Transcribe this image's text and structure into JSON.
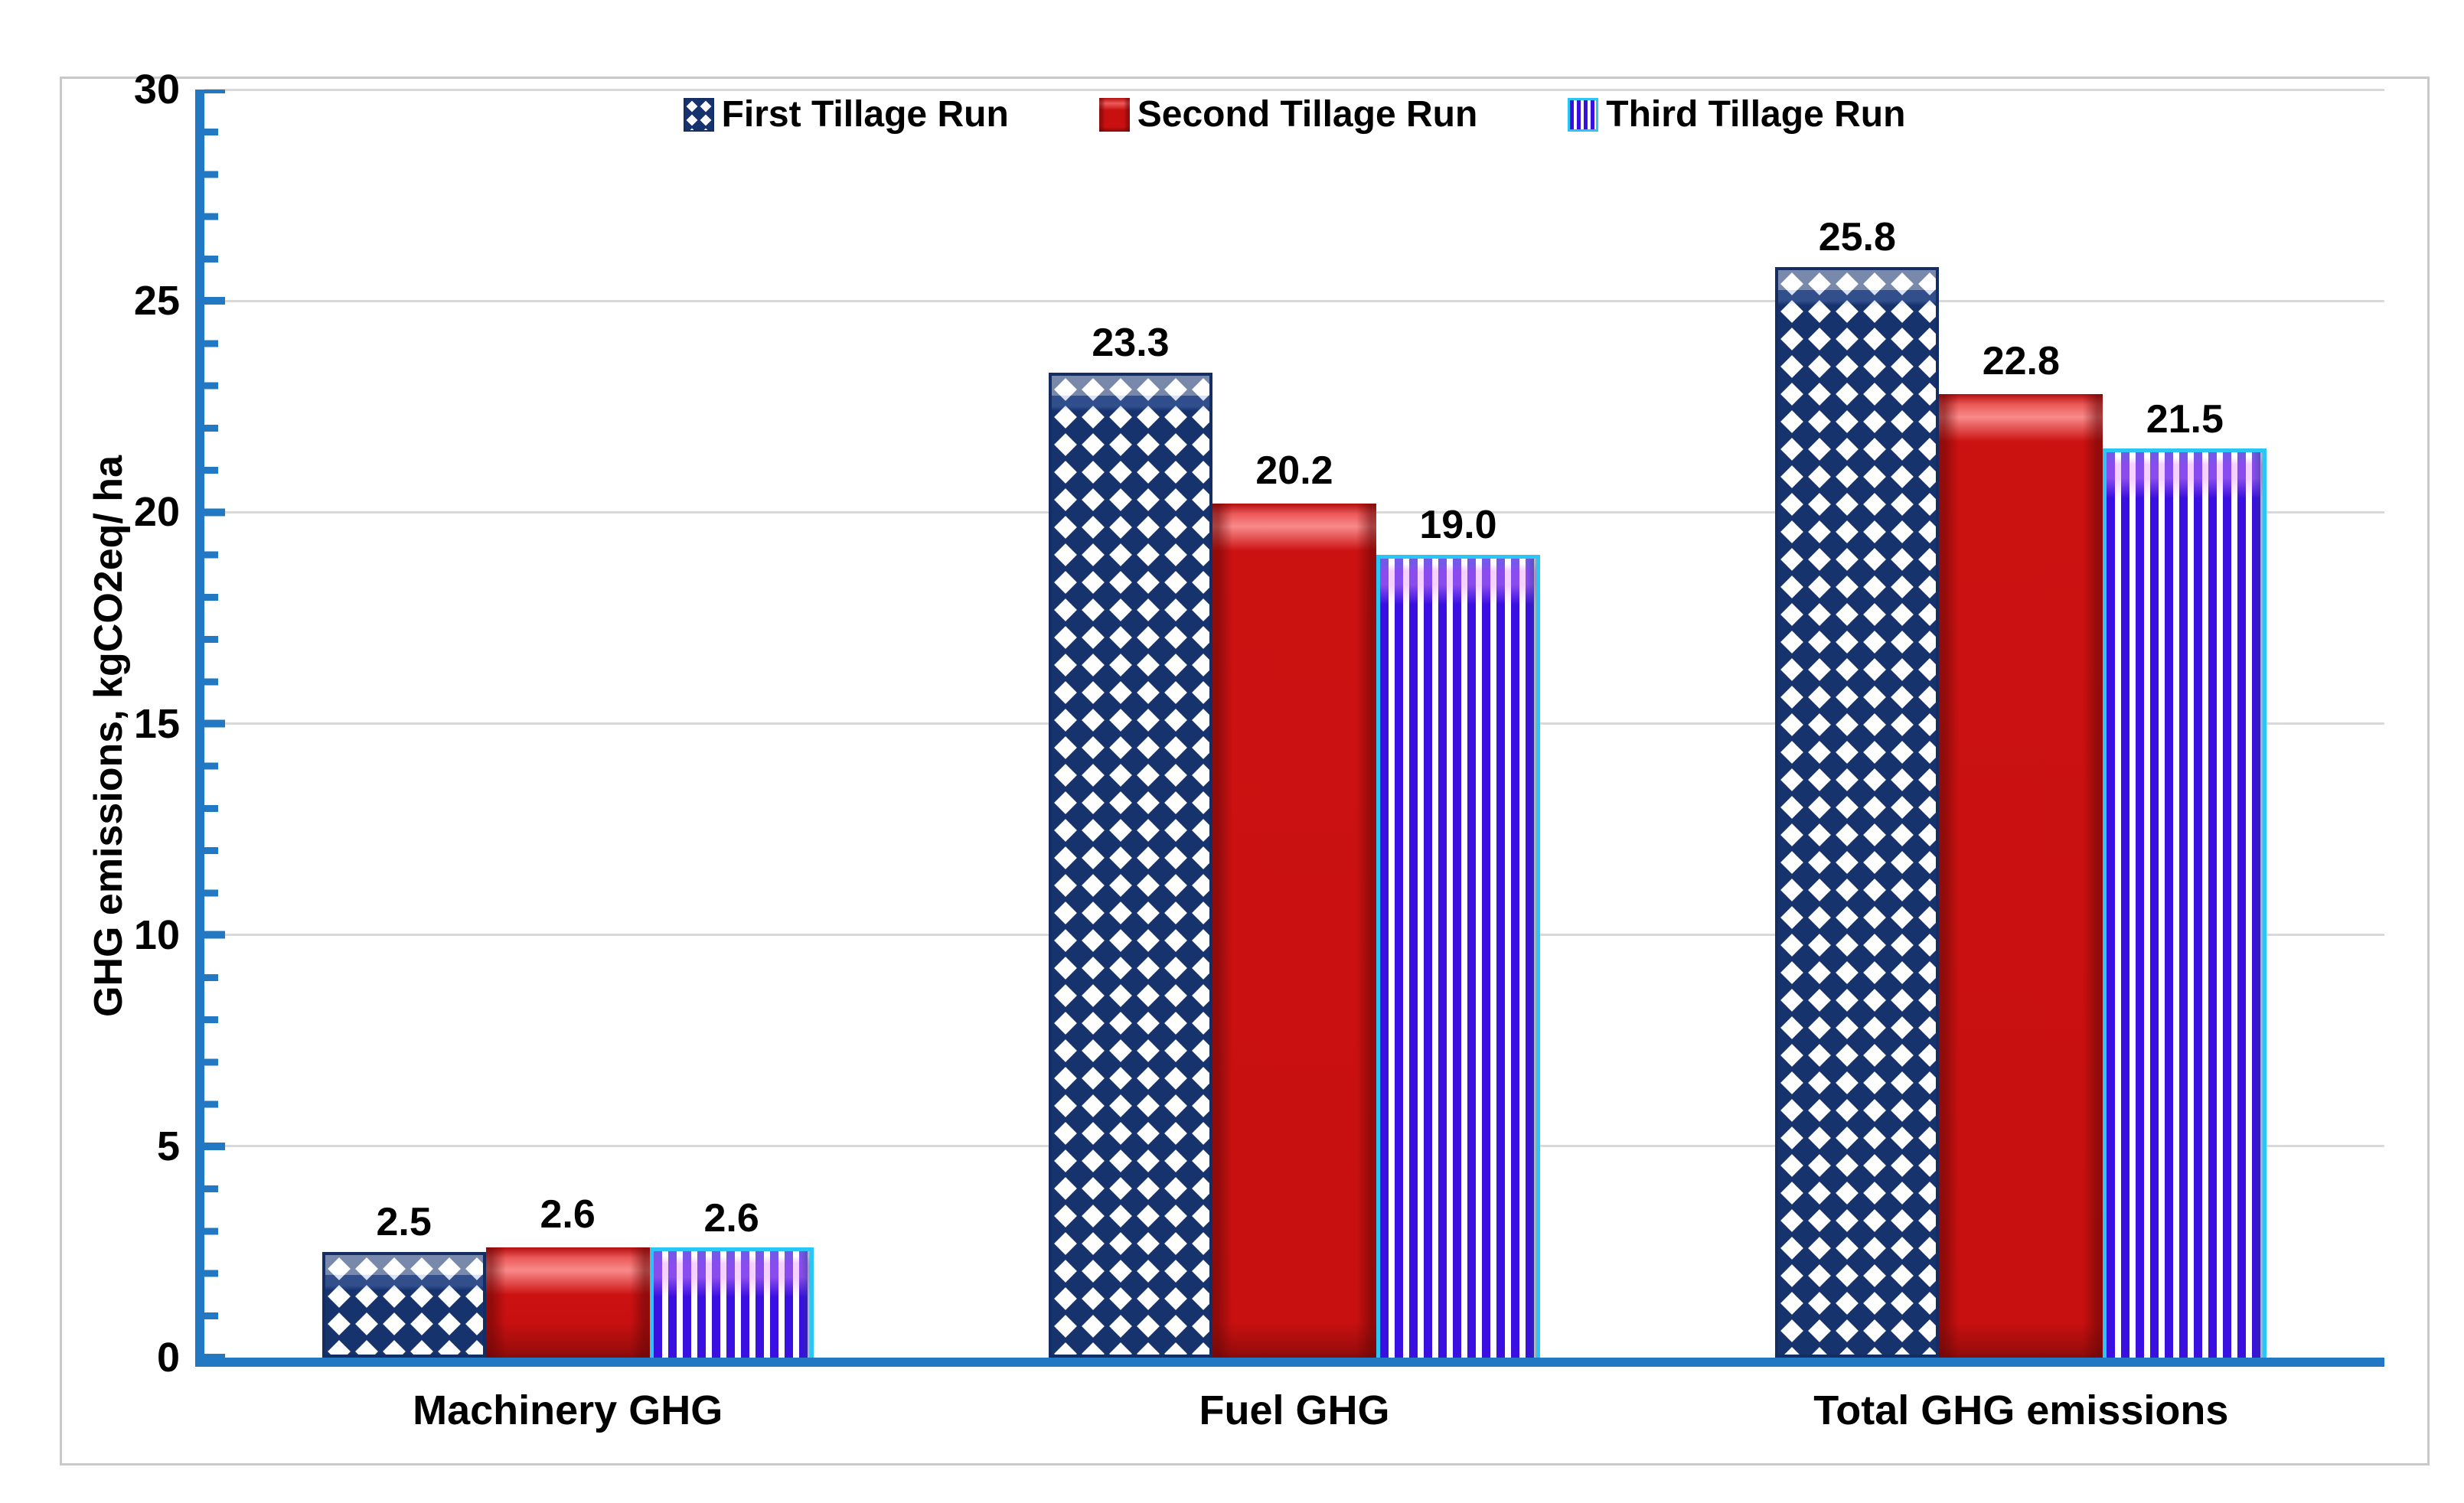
{
  "figure": {
    "background_color": "#FFFFFF",
    "frame_border_color": "#C9C9C9",
    "axis_color": "#2278C3",
    "gridline_color": "#D9D9D9"
  },
  "legend": {
    "position": "top-center",
    "items": [
      {
        "label": "First Tillage Run",
        "swatch": "navy-diamond-pattern",
        "color": "#16336E"
      },
      {
        "label": "Second Tillage Run",
        "swatch": "glossy-red-solid",
        "color": "#C81010"
      },
      {
        "label": "Third Tillage Run",
        "swatch": "violet-vertical-stripes",
        "color": "#3A0FE1",
        "swatch_border": "#2AC6F7"
      }
    ]
  },
  "y_axis": {
    "title": "GHG emissions, kgCO2eq/ ha",
    "ticks": [
      0,
      5,
      10,
      15,
      20,
      25,
      30
    ],
    "minor_tick_step": 1,
    "max": 30
  },
  "chart_data": {
    "type": "bar",
    "title": "",
    "xlabel": "",
    "ylabel": "GHG emissions, kgCO2eq/ ha",
    "ylim": [
      0,
      30
    ],
    "grid": true,
    "legend_position": "top",
    "categories": [
      "Machinery GHG",
      "Fuel GHG",
      "Total GHG emissions"
    ],
    "series": [
      {
        "name": "First Tillage Run",
        "style": "navy-diamond-pattern",
        "color": "#16336E",
        "values": [
          2.5,
          23.3,
          25.8
        ],
        "labels": [
          "2.5",
          "23.3",
          "25.8"
        ]
      },
      {
        "name": "Second Tillage Run",
        "style": "glossy-red-solid",
        "color": "#C81010",
        "values": [
          2.6,
          20.2,
          22.8
        ],
        "labels": [
          "2.6",
          "20.2",
          "22.8"
        ]
      },
      {
        "name": "Third Tillage Run",
        "style": "violet-vertical-stripes",
        "color": "#3A0FE1",
        "values": [
          2.6,
          19.0,
          21.5
        ],
        "labels": [
          "2.6",
          "19.0",
          "21.5"
        ]
      }
    ]
  }
}
